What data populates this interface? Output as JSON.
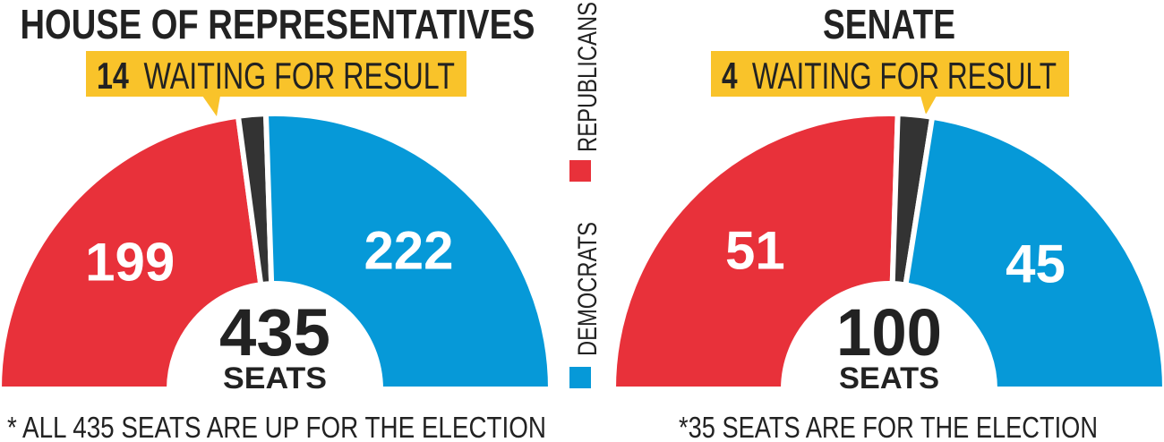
{
  "colors": {
    "republicans": "#e8313a",
    "democrats": "#0699d8",
    "waiting": "#333333",
    "callout": "#f9c32a",
    "text": "#222222",
    "label_text": "#ffffff"
  },
  "legend": {
    "republicans_label": "REPUBLICANS",
    "democrats_label": "DEMOCRATS"
  },
  "chart_data": [
    {
      "type": "pie",
      "variant": "semicircle-parliament",
      "title": "HOUSE OF REPRESENTATIVES",
      "total": 435,
      "total_value": "435",
      "total_unit": "SEATS",
      "callout_number": "14",
      "callout_text": "WAITING FOR RESULT",
      "footnote": "* ALL 435 SEATS ARE UP FOR THE ELECTION",
      "series": [
        {
          "name": "REPUBLICANS",
          "value": 199,
          "label": "199",
          "color_key": "republicans"
        },
        {
          "name": "WAITING FOR RESULT",
          "value": 14,
          "label": "",
          "color_key": "waiting"
        },
        {
          "name": "DEMOCRATS",
          "value": 222,
          "label": "222",
          "color_key": "democrats"
        }
      ]
    },
    {
      "type": "pie",
      "variant": "semicircle-parliament",
      "title": "SENATE",
      "total": 100,
      "total_value": "100",
      "total_unit": "SEATS",
      "callout_number": "4",
      "callout_text": "WAITING FOR RESULT",
      "footnote": "*35 SEATS ARE FOR THE ELECTION",
      "series": [
        {
          "name": "REPUBLICANS",
          "value": 51,
          "label": "51",
          "color_key": "republicans"
        },
        {
          "name": "WAITING FOR RESULT",
          "value": 4,
          "label": "",
          "color_key": "waiting"
        },
        {
          "name": "DEMOCRATS",
          "value": 45,
          "label": "45",
          "color_key": "democrats"
        }
      ]
    }
  ]
}
